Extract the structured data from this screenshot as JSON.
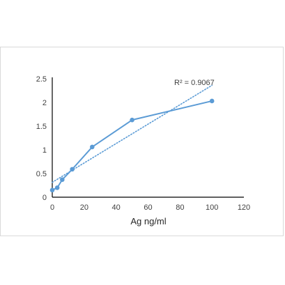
{
  "chart_data": {
    "type": "line",
    "title": "",
    "xlabel": "Ag ng/ml",
    "ylabel": "",
    "xlim": [
      0,
      120
    ],
    "ylim": [
      0,
      2.5
    ],
    "x_ticks": [
      "0",
      "20",
      "40",
      "60",
      "80",
      "100",
      "120"
    ],
    "y_ticks": [
      "0",
      "0.5",
      "1",
      "1.5",
      "2",
      "2.5"
    ],
    "grid": false,
    "legend": "none",
    "series": [
      {
        "x": [
          0,
          3.125,
          6.25,
          12.5,
          25,
          50,
          100
        ],
        "y": [
          0.15,
          0.2,
          0.37,
          0.59,
          1.06,
          1.63,
          2.03
        ],
        "color": "#5b9bd5"
      }
    ],
    "trendline": {
      "type": "logarithmic",
      "label": "R² = 0.9067",
      "color": "#5b9bd5",
      "style": "dotted"
    }
  }
}
